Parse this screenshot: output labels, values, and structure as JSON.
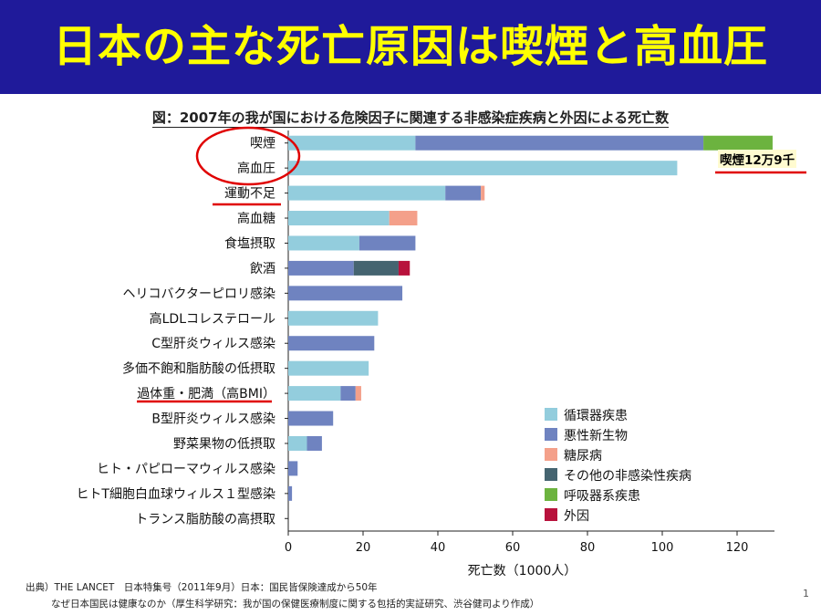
{
  "slide": {
    "title": "日本の主な死亡原因は喫煙と高血圧",
    "source_line1": "出典）THE LANCET　日本特集号（2011年9月）日本：国民皆保険達成から50年",
    "source_line2": "なぜ日本国民は健康なのか（厚生科学研究：我が国の保健医療制度に関する包括的実証研究、渋谷健司より作成）",
    "page_number": "1",
    "annotation": "喫煙12万9千"
  },
  "colors": {
    "banner": "#1f1a9a",
    "title_text": "#ffff00",
    "circulatory": "#93cddd",
    "neoplasm": "#6f83c0",
    "diabetes": "#f4a08a",
    "other_ncd": "#456470",
    "respiratory": "#6cb33f",
    "external": "#b8123c",
    "highlight": "#e00000"
  },
  "chart_data": {
    "type": "bar",
    "orientation": "horizontal",
    "stacked": true,
    "title": "図：2007年の我が国における危険因子に関連する非感染症疾病と外因による死亡数",
    "xlabel": "死亡数（1000人）",
    "ylabel": "",
    "xlim": [
      0,
      130
    ],
    "xticks": [
      0,
      20,
      40,
      60,
      80,
      100,
      120
    ],
    "categories": [
      "喫煙",
      "高血圧",
      "運動不足",
      "高血糖",
      "食塩摂取",
      "飲酒",
      "ヘリコバクターピロリ感染",
      "高LDLコレステロール",
      "C型肝炎ウィルス感染",
      "多価不飽和脂肪酸の低摂取",
      "過体重・肥満（高BMI）",
      "B型肝炎ウィルス感染",
      "野菜果物の低摂取",
      "ヒト・パピローマウィルス感染",
      "ヒトT細胞白血球ウィルス１型感染",
      "トランス脂肪酸の高摂取"
    ],
    "series": [
      {
        "name": "循環器疾患",
        "color": "#93cddd",
        "values": [
          34,
          104,
          42,
          27,
          19,
          0,
          0,
          24,
          0,
          21.5,
          14,
          0,
          5,
          0,
          0,
          0
        ]
      },
      {
        "name": "悪性新生物",
        "color": "#6f83c0",
        "values": [
          77,
          0,
          9.5,
          0,
          15,
          17.5,
          30.5,
          0,
          23,
          0,
          4,
          12,
          4,
          2.5,
          1,
          0
        ]
      },
      {
        "name": "糖尿病",
        "color": "#f4a08a",
        "values": [
          0,
          0,
          1,
          7.5,
          0,
          0,
          0,
          0,
          0,
          0,
          1.5,
          0,
          0,
          0,
          0,
          0
        ]
      },
      {
        "name": "その他の非感染性疾病",
        "color": "#456470",
        "values": [
          0,
          0,
          0,
          0,
          0,
          12,
          0,
          0,
          0,
          0,
          0,
          0,
          0,
          0,
          0,
          0
        ]
      },
      {
        "name": "呼吸器系疾患",
        "color": "#6cb33f",
        "values": [
          18.5,
          0,
          0,
          0,
          0,
          0,
          0,
          0,
          0,
          0,
          0,
          0,
          0,
          0,
          0,
          0
        ]
      },
      {
        "name": "外因",
        "color": "#b8123c",
        "values": [
          0,
          0,
          0,
          0,
          0,
          3,
          0,
          0,
          0,
          0,
          0,
          0,
          0,
          0,
          0,
          0
        ]
      }
    ],
    "legend_position": "bottom-right",
    "highlighted_categories": [
      "喫煙",
      "高血圧",
      "運動不足",
      "過体重・肥満（高BMI）"
    ],
    "grid": false
  }
}
